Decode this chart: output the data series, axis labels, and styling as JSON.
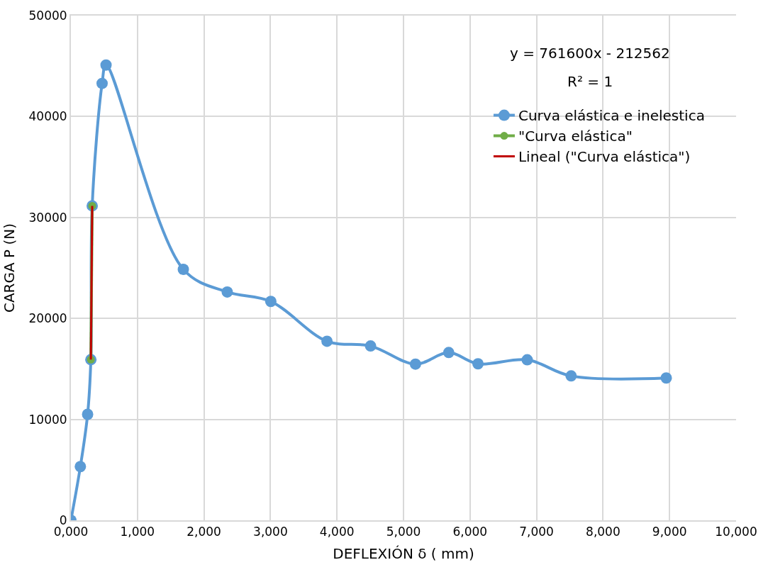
{
  "chart_data": {
    "type": "line",
    "xlabel": "DEFLEXIÓN δ ( mm)",
    "ylabel": "CARGA P (N)",
    "xlim": [
      0,
      10000
    ],
    "ylim": [
      0,
      50000
    ],
    "xticks": [
      {
        "value": 0,
        "label": "0,000"
      },
      {
        "value": 1000,
        "label": "1,000"
      },
      {
        "value": 2000,
        "label": "2,000"
      },
      {
        "value": 3000,
        "label": "3,000"
      },
      {
        "value": 4000,
        "label": "4,000"
      },
      {
        "value": 5000,
        "label": "5,000"
      },
      {
        "value": 6000,
        "label": "6,000"
      },
      {
        "value": 7000,
        "label": "7,000"
      },
      {
        "value": 8000,
        "label": "8,000"
      },
      {
        "value": 9000,
        "label": "9,000"
      },
      {
        "value": 10000,
        "label": "10,000"
      }
    ],
    "yticks": [
      0,
      10000,
      20000,
      30000,
      40000,
      50000
    ],
    "grid": true,
    "legend": "top right",
    "annotations": [
      "y = 761600x - 212562",
      "R² = 1"
    ],
    "series": [
      {
        "name": "Curva elástica e inelestica",
        "color": "#5b9bd5",
        "marker": "circle",
        "x": [
          0,
          142,
          251,
          300,
          320,
          469,
          528,
          1690,
          2350,
          3005,
          3850,
          4505,
          5180,
          5680,
          6120,
          6860,
          7520,
          8950
        ],
        "values": [
          0,
          5320,
          10500,
          15920,
          31150,
          43280,
          45100,
          24860,
          22620,
          21680,
          17740,
          17270,
          15470,
          16620,
          15500,
          15900,
          14300,
          14100
        ]
      },
      {
        "name": "\"Curva elástica\"",
        "color": "#70ad47",
        "marker": "circle",
        "x": [
          300,
          320
        ],
        "values": [
          15920,
          31150
        ]
      },
      {
        "name": "Lineal (\"Curva elástica\")",
        "color": "#c00000",
        "marker": "none",
        "x": [
          300,
          320
        ],
        "values": [
          15920,
          31150
        ]
      }
    ]
  }
}
